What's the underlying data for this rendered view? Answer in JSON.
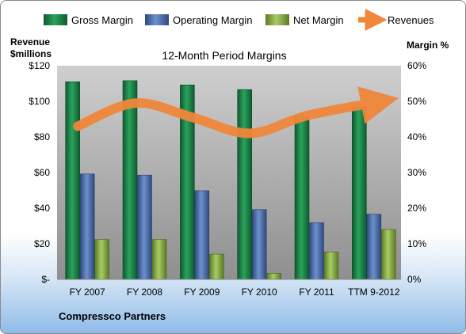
{
  "chart_data": {
    "type": "bar",
    "title": "12-Month Period Margins",
    "left_axis_label": [
      "Revenue",
      "$millions"
    ],
    "right_axis_label": "Margin %",
    "footer": "Compressco Partners",
    "categories": [
      "FY 2007",
      "FY 2008",
      "FY 2009",
      "FY 2010",
      "FY 2011",
      "TTM 9-2012"
    ],
    "left_ticks": [
      "$-",
      "$20",
      "$40",
      "$60",
      "$80",
      "$100",
      "$120"
    ],
    "right_ticks": [
      "0%",
      "10%",
      "20%",
      "30%",
      "40%",
      "50%",
      "60%"
    ],
    "ylim_left": [
      0,
      120
    ],
    "ylim_right": [
      0,
      60
    ],
    "grid": false,
    "legend_position": "top",
    "series": [
      {
        "name": "Gross Margin",
        "axis": "right",
        "color": "#1f8a4c",
        "values": [
          55.5,
          55.8,
          54.6,
          53.3,
          45.6,
          48.5
        ]
      },
      {
        "name": "Operating Margin",
        "axis": "right",
        "color": "#4f72b0",
        "values": [
          29.6,
          29.3,
          24.9,
          19.6,
          15.9,
          18.3
        ]
      },
      {
        "name": "Net Margin",
        "axis": "right",
        "color": "#8db04a",
        "values": [
          11.2,
          11.2,
          7.1,
          1.7,
          7.7,
          14.0
        ]
      },
      {
        "name": "Revenues",
        "axis": "left",
        "type": "line",
        "color": "#f0873b",
        "values": [
          86,
          99,
          91,
          82,
          92,
          100
        ]
      }
    ]
  }
}
